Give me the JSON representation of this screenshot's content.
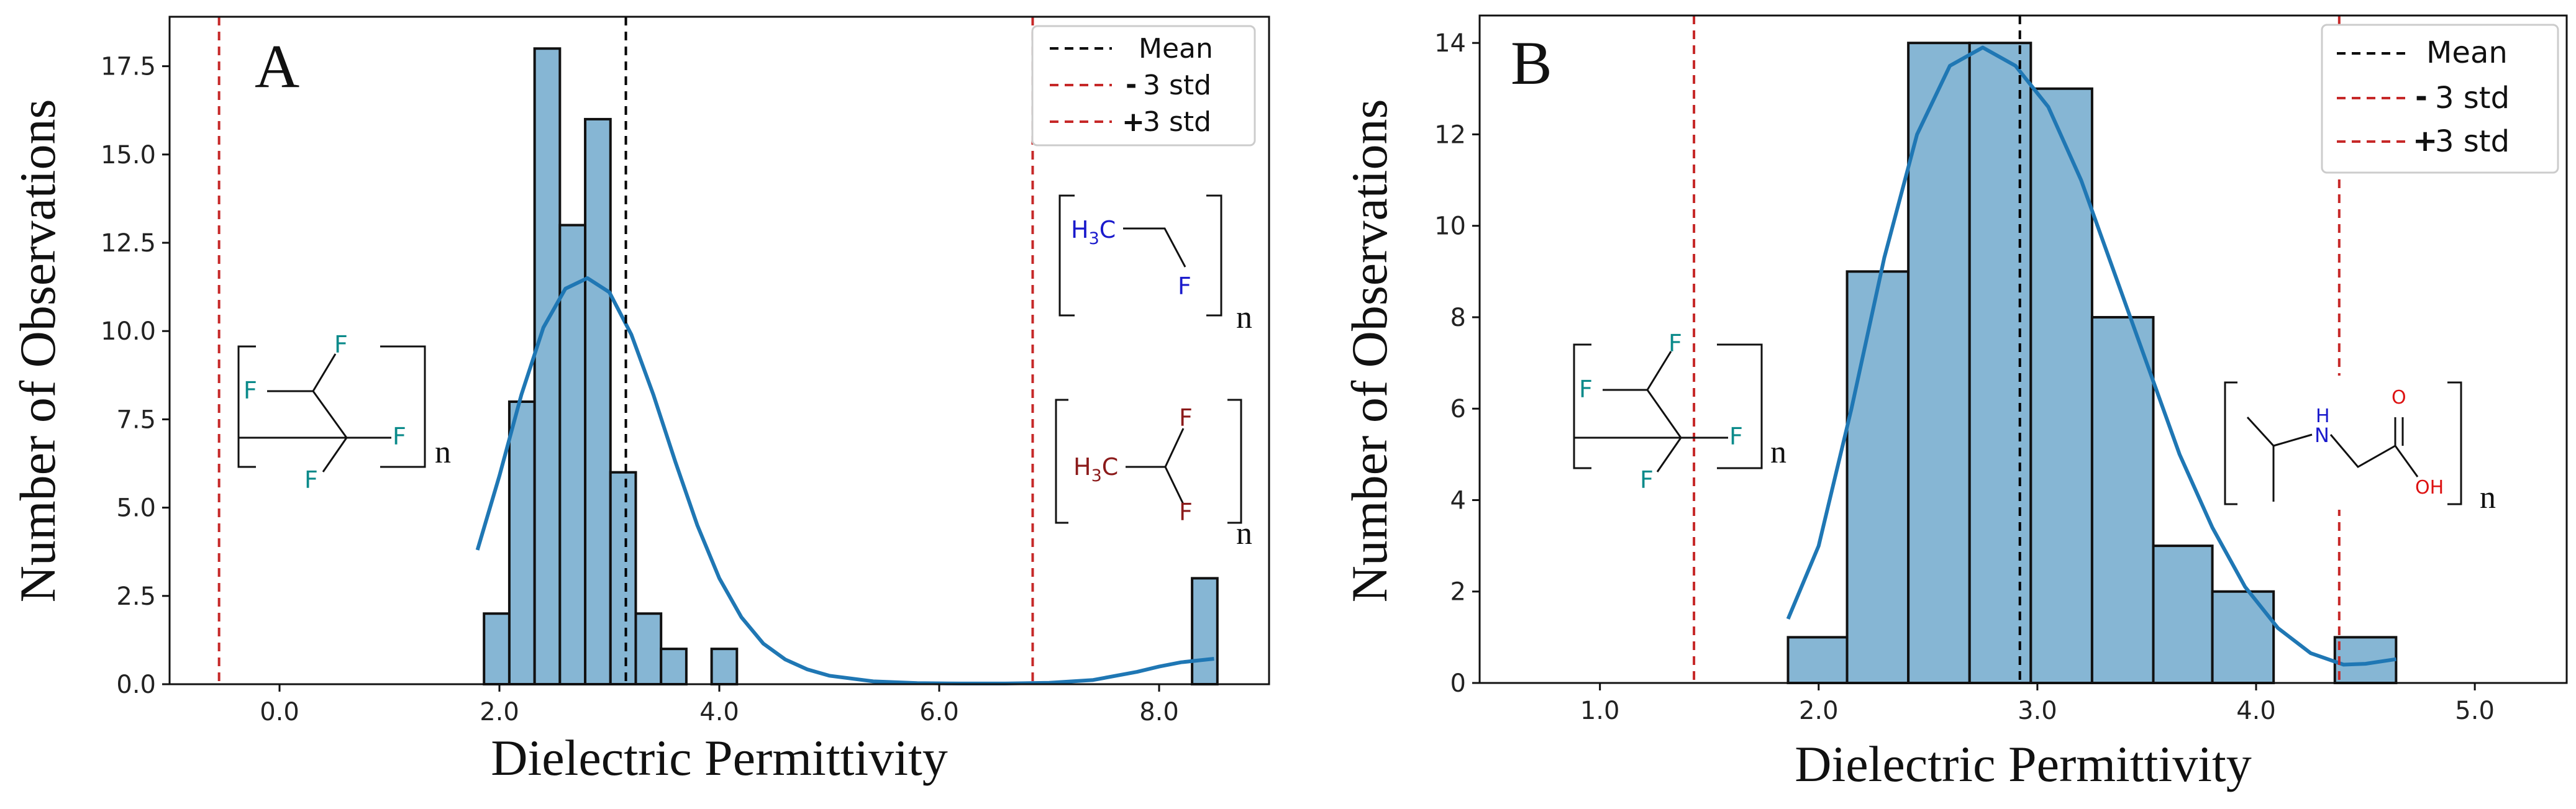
{
  "colors": {
    "bar_fill": "#86b6d4",
    "bar_edge": "#111111",
    "kde": "#1f77b4",
    "mean_line": "#000000",
    "std_line": "#c62828",
    "fluorine": "#0a8a8a",
    "blue_atom": "#1a1acc",
    "dark_red_atom": "#8b1a1a",
    "red_atom": "#dd1111"
  },
  "legend": {
    "mean": "Mean",
    "minus": "-",
    "plus": "+",
    "std_text": "3 std"
  },
  "chart_data": [
    {
      "id": "A",
      "type": "bar",
      "panel_label": "A",
      "xlabel": "Dielectric Permittivity",
      "ylabel": "Number of Observations",
      "xlim": [
        -1.0,
        9.0
      ],
      "ylim": [
        0,
        18.9
      ],
      "xticks": [
        0.0,
        2.0,
        4.0,
        6.0,
        8.0
      ],
      "xtick_labels": [
        "0.0",
        "2.0",
        "4.0",
        "6.0",
        "8.0"
      ],
      "yticks": [
        0.0,
        2.5,
        5.0,
        7.5,
        10.0,
        12.5,
        15.0,
        17.5
      ],
      "ytick_labels": [
        "0.0",
        "2.5",
        "5.0",
        "7.5",
        "10.0",
        "12.5",
        "15.0",
        "17.5"
      ],
      "bin_edges": [
        1.86,
        2.09,
        2.32,
        2.55,
        2.78,
        3.01,
        3.24,
        3.47,
        3.7,
        3.93,
        4.16,
        4.39,
        4.62,
        4.85,
        5.08,
        5.31,
        5.54,
        5.77,
        6.0,
        6.23,
        6.46,
        6.69,
        6.92,
        7.15,
        7.38,
        7.61,
        7.84,
        8.07,
        8.3,
        8.53
      ],
      "counts": [
        2,
        8,
        18,
        13,
        16,
        6,
        2,
        1,
        0,
        1,
        0,
        0,
        0,
        0,
        0,
        0,
        0,
        0,
        0,
        0,
        0,
        0,
        0,
        0,
        0,
        0,
        0,
        0,
        3
      ],
      "kde": {
        "x": [
          1.8,
          2.0,
          2.2,
          2.4,
          2.6,
          2.8,
          3.0,
          3.2,
          3.4,
          3.6,
          3.8,
          4.0,
          4.2,
          4.4,
          4.6,
          4.8,
          5.0,
          5.4,
          5.8,
          6.2,
          6.6,
          7.0,
          7.4,
          7.8,
          8.0,
          8.2,
          8.5
        ],
        "y": [
          3.8,
          5.9,
          8.2,
          10.1,
          11.2,
          11.5,
          11.1,
          9.9,
          8.2,
          6.3,
          4.5,
          3.0,
          1.9,
          1.15,
          0.7,
          0.42,
          0.24,
          0.08,
          0.03,
          0.02,
          0.02,
          0.04,
          0.12,
          0.35,
          0.5,
          0.62,
          0.72
        ]
      },
      "mean": 3.15,
      "minus_3std": -0.55,
      "plus_3std": 6.85,
      "legend_position": "top-right"
    },
    {
      "id": "B",
      "type": "bar",
      "panel_label": "B",
      "xlabel": "Dielectric Permittivity",
      "ylabel": "Number of Observations",
      "xlim": [
        0.45,
        5.42
      ],
      "ylim": [
        0,
        14.6
      ],
      "xticks": [
        1.0,
        2.0,
        3.0,
        4.0,
        5.0
      ],
      "xtick_labels": [
        "1.0",
        "2.0",
        "3.0",
        "4.0",
        "5.0"
      ],
      "yticks": [
        0,
        2,
        4,
        6,
        8,
        10,
        12,
        14
      ],
      "ytick_labels": [
        "0",
        "2",
        "4",
        "6",
        "8",
        "10",
        "12",
        "14"
      ],
      "bin_edges": [
        1.86,
        2.13,
        2.41,
        2.69,
        2.97,
        3.25,
        3.53,
        3.8,
        4.08,
        4.36,
        4.64
      ],
      "counts": [
        1,
        9,
        14,
        14,
        13,
        8,
        3,
        2,
        0,
        1
      ],
      "kde": {
        "x": [
          1.86,
          2.0,
          2.15,
          2.3,
          2.45,
          2.6,
          2.75,
          2.9,
          3.05,
          3.2,
          3.35,
          3.5,
          3.65,
          3.8,
          3.95,
          4.1,
          4.25,
          4.4,
          4.5,
          4.64
        ],
        "y": [
          1.4,
          3.0,
          6.0,
          9.3,
          12.0,
          13.5,
          13.9,
          13.5,
          12.6,
          11.0,
          9.0,
          7.0,
          5.0,
          3.4,
          2.1,
          1.2,
          0.65,
          0.4,
          0.42,
          0.52
        ]
      },
      "mean": 2.92,
      "minus_3std": 1.43,
      "plus_3std": 4.38,
      "legend_position": "top-right"
    }
  ],
  "structures": {
    "A_left": {
      "atoms": [
        "F",
        "F",
        "F",
        "F"
      ],
      "repeat": "n"
    },
    "A_top_right": {
      "group_main": "H",
      "group_sub": "3",
      "group_tail": "C",
      "atom": "F",
      "repeat": "n"
    },
    "A_bottom_right": {
      "group_main": "H",
      "group_sub": "3",
      "group_tail": "C",
      "atoms": [
        "F",
        "F"
      ],
      "repeat": "n"
    },
    "B_left": {
      "atoms": [
        "F",
        "F",
        "F",
        "F"
      ],
      "repeat": "n"
    },
    "B_right": {
      "nh_h": "H",
      "nh_n": "N",
      "carbonyl_o": "O",
      "hydroxyl": "OH",
      "repeat": "n"
    }
  }
}
